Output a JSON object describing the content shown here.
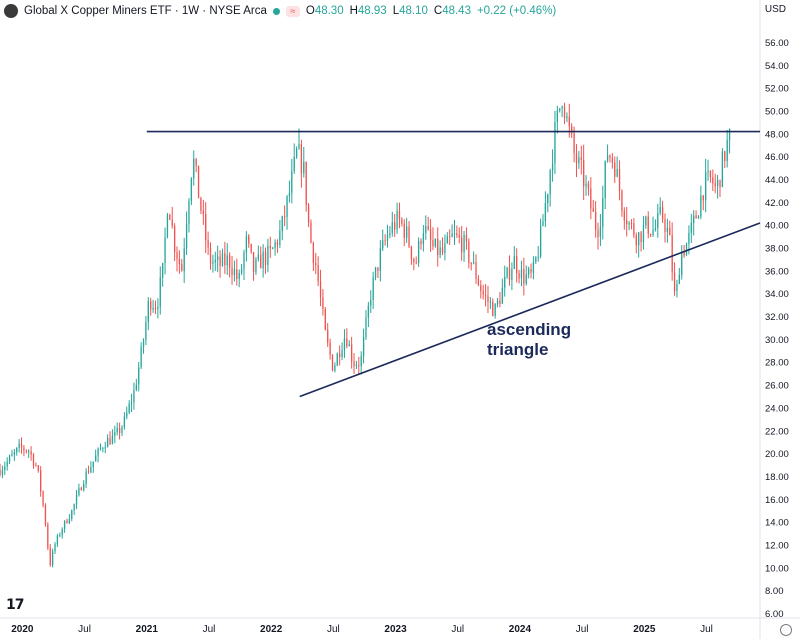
{
  "header": {
    "title": "Global X Copper Miners ETF · 1W · NYSE Arca",
    "ohlc": [
      {
        "k": "O",
        "v": "48.30"
      },
      {
        "k": "H",
        "v": "48.93"
      },
      {
        "k": "L",
        "v": "48.10"
      },
      {
        "k": "C",
        "v": "48.43"
      }
    ],
    "change": "+0.22 (+0.46%)",
    "currency": "USD"
  },
  "annotation": {
    "line1": "ascending",
    "line2": "triangle"
  },
  "colors": {
    "up": "#26a69a",
    "down": "#ef5350",
    "trendline": "#1b2a5a",
    "text": "#131722"
  },
  "icons": {
    "logo": "tradingview-logo-icon",
    "settings": "settings-icon"
  },
  "chart_data": {
    "type": "candlestick",
    "interval": "1W",
    "y_axis": {
      "position": "right",
      "ylim": [
        5.6,
        57.8
      ],
      "ticks": [
        "6.00",
        "8.00",
        "10.00",
        "12.00",
        "14.00",
        "16.00",
        "18.00",
        "20.00",
        "22.00",
        "24.00",
        "26.00",
        "28.00",
        "30.00",
        "32.00",
        "34.00",
        "36.00",
        "38.00",
        "40.00",
        "42.00",
        "44.00",
        "46.00",
        "48.00",
        "50.00",
        "52.00",
        "54.00",
        "56.00"
      ]
    },
    "x_axis": {
      "ticks": [
        {
          "label": "2020",
          "t": 2020.0
        },
        {
          "label": "Jul",
          "t": 2020.5
        },
        {
          "label": "2021",
          "t": 2021.0
        },
        {
          "label": "Jul",
          "t": 2021.5
        },
        {
          "label": "2022",
          "t": 2022.0
        },
        {
          "label": "Jul",
          "t": 2022.5
        },
        {
          "label": "2023",
          "t": 2023.0
        },
        {
          "label": "Jul",
          "t": 2023.5
        },
        {
          "label": "2024",
          "t": 2024.0
        },
        {
          "label": "Jul",
          "t": 2024.5
        },
        {
          "label": "2025",
          "t": 2025.0
        },
        {
          "label": "Jul",
          "t": 2025.5
        }
      ]
    },
    "resistance": {
      "price": 48.2,
      "t_start": 2021.0
    },
    "support": {
      "points": [
        {
          "t": 2022.23,
          "price": 25.0
        },
        {
          "t": 2025.93,
          "price": 40.2
        }
      ]
    },
    "price_path": [
      [
        2019.82,
        18.6
      ],
      [
        2019.9,
        19.5
      ],
      [
        2019.98,
        20.5
      ],
      [
        2020.05,
        20.3
      ],
      [
        2020.12,
        18.7
      ],
      [
        2020.18,
        14.5
      ],
      [
        2020.22,
        10.2
      ],
      [
        2020.26,
        12.0
      ],
      [
        2020.32,
        13.5
      ],
      [
        2020.4,
        15.0
      ],
      [
        2020.5,
        18.0
      ],
      [
        2020.58,
        19.5
      ],
      [
        2020.66,
        21.0
      ],
      [
        2020.75,
        21.5
      ],
      [
        2020.82,
        22.8
      ],
      [
        2020.9,
        25.5
      ],
      [
        2020.96,
        29.0
      ],
      [
        2021.02,
        33.5
      ],
      [
        2021.08,
        33.0
      ],
      [
        2021.13,
        36.0
      ],
      [
        2021.17,
        42.5
      ],
      [
        2021.22,
        38.5
      ],
      [
        2021.28,
        36.0
      ],
      [
        2021.33,
        42.0
      ],
      [
        2021.37,
        46.0
      ],
      [
        2021.42,
        42.5
      ],
      [
        2021.5,
        37.0
      ],
      [
        2021.58,
        36.5
      ],
      [
        2021.66,
        37.0
      ],
      [
        2021.74,
        35.0
      ],
      [
        2021.8,
        38.5
      ],
      [
        2021.86,
        36.0
      ],
      [
        2021.92,
        37.0
      ],
      [
        2022.0,
        37.5
      ],
      [
        2022.08,
        39.5
      ],
      [
        2022.15,
        43.0
      ],
      [
        2022.21,
        46.5
      ],
      [
        2022.26,
        45.0
      ],
      [
        2022.31,
        39.0
      ],
      [
        2022.36,
        36.5
      ],
      [
        2022.44,
        30.0
      ],
      [
        2022.5,
        27.5
      ],
      [
        2022.56,
        29.5
      ],
      [
        2022.6,
        30.5
      ],
      [
        2022.66,
        28.0
      ],
      [
        2022.72,
        28.0
      ],
      [
        2022.8,
        34.0
      ],
      [
        2022.88,
        37.5
      ],
      [
        2022.95,
        39.5
      ],
      [
        2023.02,
        40.5
      ],
      [
        2023.08,
        39.5
      ],
      [
        2023.16,
        36.5
      ],
      [
        2023.22,
        40.0
      ],
      [
        2023.3,
        38.0
      ],
      [
        2023.38,
        37.5
      ],
      [
        2023.46,
        39.0
      ],
      [
        2023.54,
        38.5
      ],
      [
        2023.62,
        36.5
      ],
      [
        2023.7,
        34.0
      ],
      [
        2023.8,
        32.5
      ],
      [
        2023.88,
        35.0
      ],
      [
        2023.95,
        37.0
      ],
      [
        2024.02,
        35.5
      ],
      [
        2024.1,
        35.5
      ],
      [
        2024.16,
        38.5
      ],
      [
        2024.22,
        43.0
      ],
      [
        2024.28,
        48.0
      ],
      [
        2024.34,
        51.5
      ],
      [
        2024.38,
        49.0
      ],
      [
        2024.44,
        46.0
      ],
      [
        2024.5,
        44.5
      ],
      [
        2024.56,
        42.0
      ],
      [
        2024.62,
        39.5
      ],
      [
        2024.66,
        41.5
      ],
      [
        2024.7,
        46.5
      ],
      [
        2024.76,
        45.5
      ],
      [
        2024.82,
        42.0
      ],
      [
        2024.88,
        40.0
      ],
      [
        2024.95,
        39.0
      ],
      [
        2025.02,
        40.0
      ],
      [
        2025.08,
        39.5
      ],
      [
        2025.14,
        41.0
      ],
      [
        2025.2,
        39.0
      ],
      [
        2025.25,
        33.0
      ],
      [
        2025.29,
        37.5
      ],
      [
        2025.35,
        38.5
      ],
      [
        2025.42,
        41.0
      ],
      [
        2025.48,
        43.5
      ],
      [
        2025.54,
        44.0
      ],
      [
        2025.58,
        43.0
      ],
      [
        2025.64,
        46.0
      ],
      [
        2025.7,
        48.43
      ]
    ],
    "last_close": 48.43
  }
}
